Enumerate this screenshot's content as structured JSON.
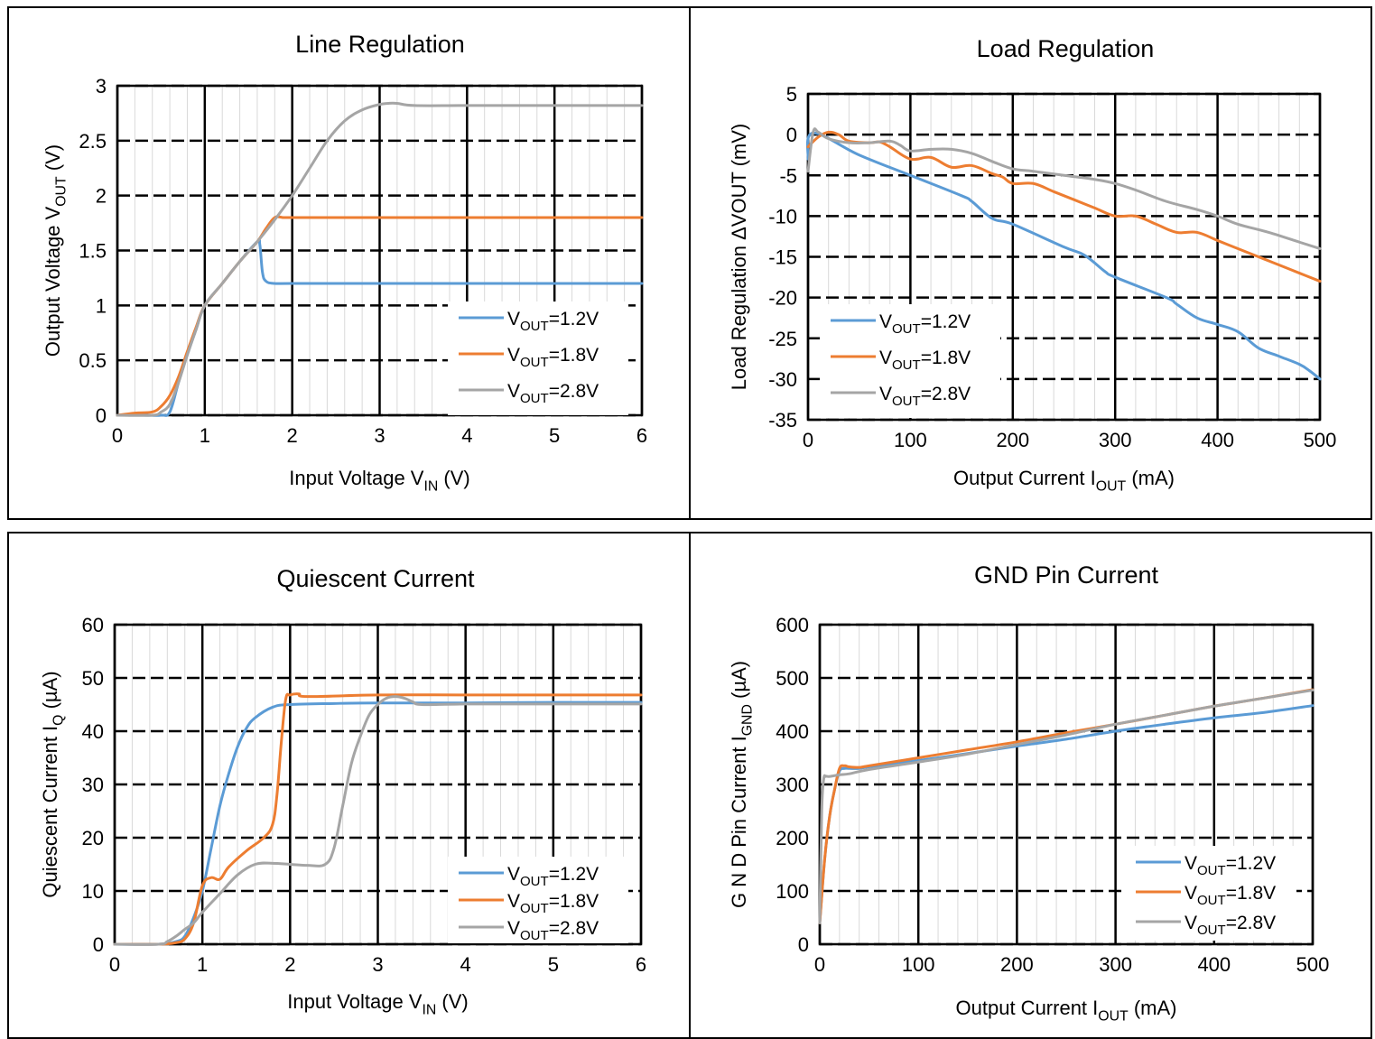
{
  "colors": {
    "series_1_2V": "#5B9BD5",
    "series_1_8V": "#ED7D31",
    "series_2_8V": "#A5A5A5"
  },
  "chart_data": [
    {
      "id": "line-regulation",
      "type": "line",
      "title": "Line Regulation",
      "xlabel": {
        "main": "Input Voltage V",
        "sub": "IN",
        "unit": " (V)"
      },
      "ylabel": {
        "main": "Output Voltage V",
        "sub": "OUT",
        "unit": " (V)"
      },
      "xlim": [
        0,
        6
      ],
      "ylim": [
        0,
        3
      ],
      "xticks": [
        0,
        1,
        2,
        3,
        4,
        5,
        6
      ],
      "yticks": [
        0,
        0.5,
        1,
        1.5,
        2,
        2.5,
        3
      ],
      "ytick_labels": [
        "0",
        "0.5",
        "1",
        "1.5",
        "2",
        "2.5",
        "3"
      ],
      "grid": true,
      "legend_position": "bottom-right",
      "series": [
        {
          "name": "1.2V",
          "color_key": "series_1_2V",
          "x": [
            0,
            0.3,
            0.5,
            0.6,
            0.7,
            0.8,
            0.9,
            1.0,
            1.2,
            1.4,
            1.6,
            1.63,
            1.66,
            1.7,
            1.8,
            2.0,
            3.0,
            4.0,
            5.0,
            6.0
          ],
          "y": [
            0,
            0,
            0,
            0.03,
            0.3,
            0.55,
            0.78,
            1.0,
            1.2,
            1.4,
            1.58,
            1.55,
            1.3,
            1.22,
            1.2,
            1.2,
            1.2,
            1.2,
            1.2,
            1.2
          ]
        },
        {
          "name": "1.8V",
          "color_key": "series_1_8V",
          "x": [
            0,
            0.2,
            0.4,
            0.5,
            0.6,
            0.7,
            0.8,
            0.9,
            1.0,
            1.2,
            1.4,
            1.6,
            1.7,
            1.8,
            1.9,
            2.0,
            3.0,
            4.0,
            5.0,
            6.0
          ],
          "y": [
            0,
            0.02,
            0.03,
            0.08,
            0.18,
            0.35,
            0.58,
            0.8,
            1.0,
            1.2,
            1.4,
            1.58,
            1.7,
            1.8,
            1.8,
            1.8,
            1.8,
            1.8,
            1.8,
            1.8
          ]
        },
        {
          "name": "2.8V",
          "color_key": "series_2_8V",
          "x": [
            0,
            0.4,
            0.5,
            0.6,
            0.7,
            0.8,
            0.9,
            1.0,
            1.2,
            1.4,
            1.6,
            1.8,
            2.0,
            2.2,
            2.4,
            2.6,
            2.8,
            3.0,
            3.1,
            3.2,
            3.4,
            4.0,
            5.0,
            6.0
          ],
          "y": [
            0,
            0,
            0.03,
            0.1,
            0.3,
            0.55,
            0.78,
            1.0,
            1.2,
            1.4,
            1.58,
            1.78,
            2.0,
            2.25,
            2.5,
            2.68,
            2.78,
            2.83,
            2.84,
            2.84,
            2.82,
            2.82,
            2.82,
            2.82
          ]
        }
      ]
    },
    {
      "id": "load-regulation",
      "type": "line",
      "title": "Load Regulation",
      "xlabel": {
        "main": "Output Current I",
        "sub": "OUT",
        "unit": " (mA)"
      },
      "ylabel": {
        "main": "Load Regulation ΔVOUT (mV)",
        "sub": "",
        "unit": ""
      },
      "xlim": [
        0,
        500
      ],
      "ylim": [
        -35,
        5
      ],
      "xticks": [
        0,
        100,
        200,
        300,
        400,
        500
      ],
      "yticks": [
        -35,
        -30,
        -25,
        -20,
        -15,
        -10,
        -5,
        0,
        5
      ],
      "ytick_labels": [
        "-35",
        "-30",
        "-25",
        "-20",
        "-15",
        "-10",
        "-5",
        "0",
        "5"
      ],
      "grid": true,
      "legend_position": "bottom-left",
      "series": [
        {
          "name": "1.2V",
          "color_key": "series_1_2V",
          "x": [
            0,
            5,
            50,
            100,
            150,
            160,
            180,
            200,
            250,
            270,
            290,
            300,
            350,
            360,
            380,
            400,
            420,
            440,
            460,
            480,
            490,
            500
          ],
          "y": [
            -3,
            0.2,
            -2.5,
            -5,
            -7.5,
            -8.2,
            -10.3,
            -11,
            -13.8,
            -14.8,
            -16.8,
            -17.5,
            -20,
            -20.8,
            -22.5,
            -23.3,
            -24.2,
            -26.2,
            -27.2,
            -28.2,
            -29,
            -30
          ]
        },
        {
          "name": "1.8V",
          "color_key": "series_1_8V",
          "x": [
            0,
            10,
            20,
            30,
            40,
            60,
            70,
            80,
            100,
            120,
            140,
            160,
            180,
            190,
            200,
            220,
            240,
            260,
            280,
            300,
            320,
            340,
            360,
            380,
            400,
            420,
            440,
            460,
            480,
            500
          ],
          "y": [
            -1.5,
            -0.3,
            0.3,
            0,
            -0.8,
            -1,
            -0.9,
            -1.5,
            -3,
            -2.8,
            -4,
            -3.8,
            -4.8,
            -5.2,
            -6,
            -6,
            -7,
            -8,
            -9,
            -10,
            -10,
            -11,
            -12,
            -12,
            -13,
            -14,
            -15,
            -16,
            -17,
            -18
          ]
        },
        {
          "name": "2.8V",
          "color_key": "series_2_8V",
          "x": [
            0,
            5,
            10,
            20,
            40,
            60,
            80,
            90,
            100,
            120,
            140,
            160,
            180,
            200,
            220,
            250,
            280,
            300,
            320,
            350,
            380,
            400,
            420,
            450,
            480,
            500
          ],
          "y": [
            -4.5,
            0.3,
            0.3,
            -0.5,
            -1,
            -1,
            -0.8,
            -1.3,
            -2,
            -1.8,
            -1.8,
            -2.3,
            -3.3,
            -4.2,
            -4.5,
            -5,
            -5.5,
            -6,
            -6.8,
            -8.2,
            -9.2,
            -10,
            -11,
            -12,
            -13.2,
            -14
          ]
        }
      ]
    },
    {
      "id": "quiescent-current",
      "type": "line",
      "title": "Quiescent Current",
      "xlabel": {
        "main": "Input Voltage V",
        "sub": "IN",
        "unit": " (V)"
      },
      "ylabel": {
        "main": "Quiescent Current I",
        "sub": "Q",
        "unit": " (µA)"
      },
      "xlim": [
        0,
        6
      ],
      "ylim": [
        0,
        60
      ],
      "xticks": [
        0,
        1,
        2,
        3,
        4,
        5,
        6
      ],
      "yticks": [
        0,
        10,
        20,
        30,
        40,
        50,
        60
      ],
      "ytick_labels": [
        "0",
        "10",
        "20",
        "30",
        "40",
        "50",
        "60"
      ],
      "grid": true,
      "legend_position": "bottom-right",
      "series": [
        {
          "name": "1.2V",
          "color_key": "series_1_2V",
          "x": [
            0,
            0.5,
            0.7,
            0.8,
            0.9,
            1.0,
            1.1,
            1.2,
            1.3,
            1.4,
            1.5,
            1.6,
            1.8,
            2.0,
            2.5,
            3.0,
            4.0,
            5.0,
            6.0
          ],
          "y": [
            0,
            0,
            0.5,
            1.5,
            5,
            10,
            18,
            26,
            32,
            37,
            40.5,
            42.5,
            44.5,
            45,
            45.2,
            45.3,
            45.3,
            45.4,
            45.4
          ]
        },
        {
          "name": "1.8V",
          "color_key": "series_1_8V",
          "x": [
            0,
            0.5,
            0.7,
            0.8,
            0.9,
            1.0,
            1.1,
            1.2,
            1.3,
            1.5,
            1.7,
            1.8,
            1.85,
            1.9,
            1.95,
            2.0,
            2.1,
            2.2,
            3.0,
            4.0,
            5.0,
            6.0
          ],
          "y": [
            0,
            0,
            0.3,
            1,
            4,
            11,
            12.5,
            12.2,
            14.5,
            17.5,
            20,
            22.5,
            28,
            38,
            46,
            46.8,
            47,
            46.5,
            46.8,
            46.8,
            46.8,
            46.8
          ]
        },
        {
          "name": "2.8V",
          "color_key": "series_2_8V",
          "x": [
            0,
            0.5,
            0.6,
            0.7,
            0.8,
            0.9,
            1.0,
            1.2,
            1.4,
            1.6,
            1.8,
            2.0,
            2.2,
            2.4,
            2.5,
            2.6,
            2.7,
            2.8,
            2.9,
            3.0,
            3.1,
            3.2,
            3.3,
            3.4,
            3.5,
            4.0,
            5.0,
            6.0
          ],
          "y": [
            0,
            0,
            0.5,
            1.5,
            2.8,
            4,
            6,
            9.5,
            13,
            15,
            15.2,
            15,
            14.8,
            15,
            18,
            26,
            34,
            39,
            43,
            45,
            46.2,
            46.5,
            46.2,
            45.5,
            45,
            45.1,
            45.1,
            45.1
          ]
        }
      ]
    },
    {
      "id": "gnd-pin-current",
      "type": "line",
      "title": "GND Pin Current",
      "xlabel": {
        "main": "Output Current I",
        "sub": "OUT",
        "unit": " (mA)"
      },
      "ylabel": {
        "main": "G N D Pin Current I",
        "sub": "GND",
        "unit": " (µA)"
      },
      "xlim": [
        0,
        500
      ],
      "ylim": [
        0,
        600
      ],
      "xticks": [
        0,
        100,
        200,
        300,
        400,
        500
      ],
      "yticks": [
        0,
        100,
        200,
        300,
        400,
        500,
        600
      ],
      "ytick_labels": [
        "0",
        "100",
        "200",
        "300",
        "400",
        "500",
        "600"
      ],
      "grid": true,
      "legend_position": "bottom-right",
      "series": [
        {
          "name": "1.2V",
          "color_key": "series_1_2V",
          "x": [
            0,
            5,
            10,
            15,
            20,
            25,
            30,
            40,
            50,
            100,
            150,
            200,
            250,
            300,
            350,
            400,
            450,
            500
          ],
          "y": [
            40,
            160,
            240,
            290,
            325,
            330,
            330,
            330,
            333,
            345,
            358,
            372,
            385,
            400,
            413,
            425,
            435,
            448
          ]
        },
        {
          "name": "1.8V",
          "color_key": "series_1_8V",
          "x": [
            0,
            5,
            10,
            15,
            20,
            25,
            30,
            40,
            50,
            100,
            150,
            200,
            250,
            300,
            350,
            400,
            450,
            500
          ],
          "y": [
            40,
            160,
            240,
            290,
            330,
            335,
            333,
            332,
            335,
            350,
            365,
            380,
            397,
            413,
            430,
            447,
            462,
            478
          ]
        },
        {
          "name": "2.8V",
          "color_key": "series_2_8V",
          "x": [
            0,
            2,
            4,
            6,
            8,
            10,
            20,
            30,
            50,
            100,
            150,
            200,
            250,
            300,
            350,
            400,
            450,
            500
          ],
          "y": [
            40,
            250,
            310,
            315,
            315,
            315,
            318,
            320,
            328,
            342,
            357,
            375,
            393,
            413,
            430,
            447,
            462,
            477
          ]
        }
      ]
    }
  ]
}
